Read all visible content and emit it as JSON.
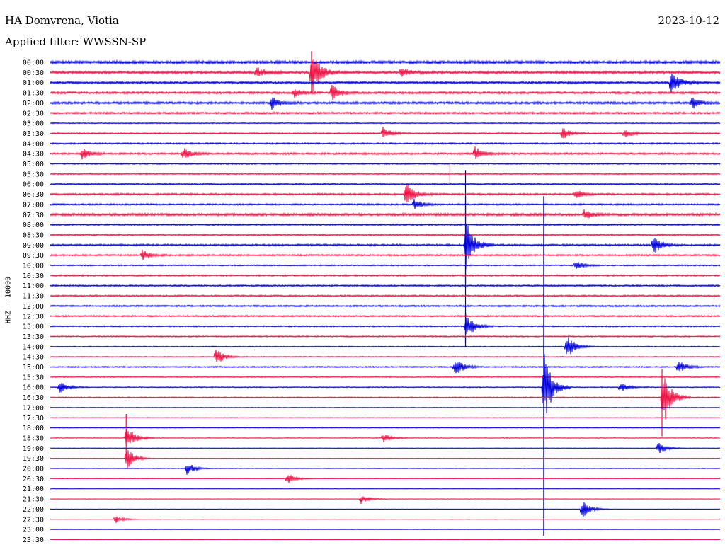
{
  "header": {
    "station": "HA Domvrena, Viotia",
    "date": "2023-10-12",
    "filter": "Applied filter: WWSSN-SP",
    "channel": "HHZ - 10000"
  },
  "chart_data": {
    "type": "line",
    "title": "HA Domvrena, Viotia",
    "subtitle": "Applied filter: WWSSN-SP",
    "ylabel": "HHZ - 10000",
    "colors": {
      "even_rows": "#0000dd",
      "odd_rows": "#ee1144"
    },
    "rows": [
      "00:00",
      "00:30",
      "01:00",
      "01:30",
      "02:00",
      "02:30",
      "03:00",
      "03:30",
      "04:00",
      "04:30",
      "05:00",
      "05:30",
      "06:00",
      "06:30",
      "07:00",
      "07:30",
      "08:00",
      "08:30",
      "09:00",
      "09:30",
      "10:00",
      "10:30",
      "11:00",
      "11:30",
      "12:00",
      "12:30",
      "13:00",
      "13:30",
      "14:00",
      "14:30",
      "15:00",
      "15:30",
      "16:00",
      "16:30",
      "17:00",
      "17:30",
      "18:00",
      "18:30",
      "19:00",
      "19:30",
      "20:00",
      "20:30",
      "21:00",
      "21:30",
      "22:00",
      "22:30",
      "23:00",
      "23:30"
    ],
    "noise_level": [
      0.9,
      0.8,
      0.7,
      0.7,
      0.7,
      0.6,
      0.3,
      0.4,
      0.5,
      0.6,
      0.4,
      0.4,
      0.5,
      0.6,
      0.5,
      0.8,
      0.5,
      0.5,
      0.6,
      0.5,
      0.4,
      0.5,
      0.5,
      0.5,
      0.5,
      0.5,
      0.4,
      0.4,
      0.3,
      0.3,
      0.4,
      0.3,
      0.3,
      0.3,
      0.15,
      0.2,
      0.2,
      0.2,
      0.15,
      0.15,
      0.15,
      0.12,
      0.12,
      0.12,
      0.1,
      0.1,
      0.08,
      0.08
    ],
    "events": [
      {
        "row": 1,
        "minute": 11.7,
        "amp": 26
      },
      {
        "row": 1,
        "minute": 9.2,
        "amp": 6
      },
      {
        "row": 1,
        "minute": 15.7,
        "amp": 6
      },
      {
        "row": 2,
        "minute": 27.8,
        "amp": 14
      },
      {
        "row": 3,
        "minute": 12.6,
        "amp": 8
      },
      {
        "row": 3,
        "minute": 10.9,
        "amp": 5
      },
      {
        "row": 4,
        "minute": 9.9,
        "amp": 7
      },
      {
        "row": 4,
        "minute": 28.7,
        "amp": 7
      },
      {
        "row": 7,
        "minute": 14.9,
        "amp": 6
      },
      {
        "row": 7,
        "minute": 22.9,
        "amp": 7
      },
      {
        "row": 7,
        "minute": 25.7,
        "amp": 5
      },
      {
        "row": 9,
        "minute": 1.4,
        "amp": 6
      },
      {
        "row": 9,
        "minute": 5.9,
        "amp": 7
      },
      {
        "row": 9,
        "minute": 19.0,
        "amp": 8
      },
      {
        "row": 13,
        "minute": 15.9,
        "amp": 14
      },
      {
        "row": 13,
        "minute": 23.5,
        "amp": 5
      },
      {
        "row": 14,
        "minute": 16.3,
        "amp": 5
      },
      {
        "row": 15,
        "minute": 23.9,
        "amp": 5
      },
      {
        "row": 18,
        "minute": 18.6,
        "amp": 30
      },
      {
        "row": 18,
        "minute": 27.0,
        "amp": 9
      },
      {
        "row": 19,
        "minute": 4.1,
        "amp": 6
      },
      {
        "row": 20,
        "minute": 23.5,
        "amp": 5
      },
      {
        "row": 26,
        "minute": 18.6,
        "amp": 14
      },
      {
        "row": 28,
        "minute": 23.1,
        "amp": 13
      },
      {
        "row": 29,
        "minute": 7.4,
        "amp": 9
      },
      {
        "row": 30,
        "minute": 18.1,
        "amp": 11
      },
      {
        "row": 30,
        "minute": 28.1,
        "amp": 7
      },
      {
        "row": 32,
        "minute": 0.4,
        "amp": 6
      },
      {
        "row": 32,
        "minute": 22.1,
        "amp": 40
      },
      {
        "row": 32,
        "minute": 25.5,
        "amp": 5
      },
      {
        "row": 33,
        "minute": 27.4,
        "amp": 34
      },
      {
        "row": 37,
        "minute": 3.4,
        "amp": 14
      },
      {
        "row": 37,
        "minute": 14.9,
        "amp": 5
      },
      {
        "row": 38,
        "minute": 27.2,
        "amp": 7
      },
      {
        "row": 39,
        "minute": 3.4,
        "amp": 12
      },
      {
        "row": 40,
        "minute": 6.1,
        "amp": 7
      },
      {
        "row": 41,
        "minute": 10.6,
        "amp": 6
      },
      {
        "row": 43,
        "minute": 13.9,
        "amp": 5
      },
      {
        "row": 44,
        "minute": 23.8,
        "amp": 10
      },
      {
        "row": 45,
        "minute": 2.9,
        "amp": 4
      }
    ],
    "spikes": [
      {
        "row": 1,
        "minute": 11.7,
        "up": 30,
        "down": 30
      },
      {
        "row": 11,
        "minute": 17.9,
        "up": 15,
        "down": 12
      },
      {
        "row": 12,
        "minute": 18.6,
        "up": 20,
        "down": 140
      },
      {
        "row": 16,
        "minute": 18.6,
        "up": 40,
        "down": 20
      },
      {
        "row": 20,
        "minute": 18.6,
        "up": 14,
        "down": 110
      },
      {
        "row": 26,
        "minute": 18.6,
        "up": 20,
        "down": 30
      },
      {
        "row": 32,
        "minute": 22.1,
        "up": 270,
        "down": 210
      },
      {
        "row": 33,
        "minute": 27.4,
        "up": 40,
        "down": 55
      },
      {
        "row": 37,
        "minute": 3.4,
        "up": 34,
        "down": 26
      }
    ]
  }
}
